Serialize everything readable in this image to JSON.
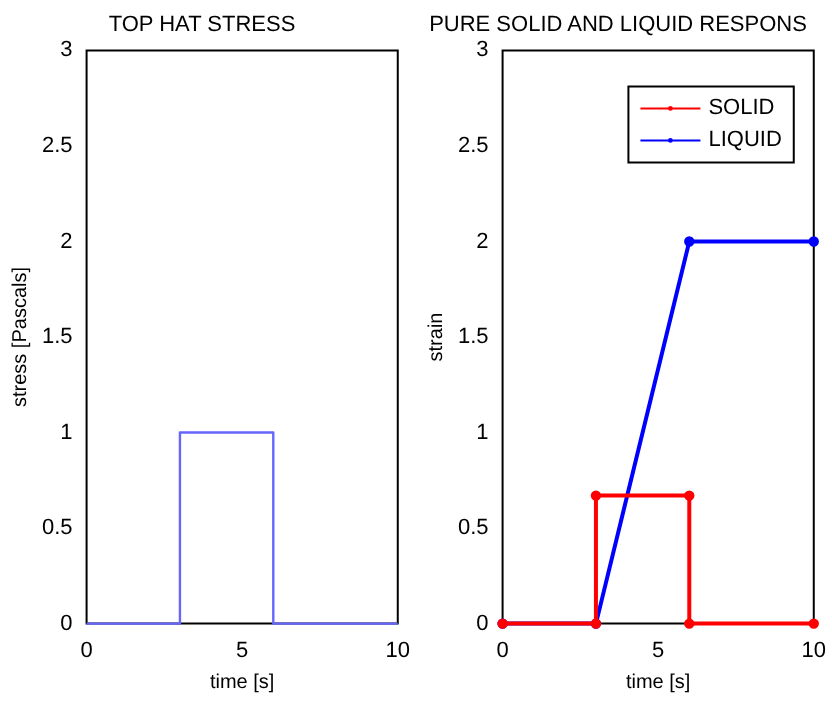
{
  "chart_data": [
    {
      "type": "line",
      "title": "TOP HAT STRESS",
      "xlabel": "time [s]",
      "ylabel": "stress [Pascals]",
      "xlim": [
        0,
        10
      ],
      "xticks": [
        0,
        5,
        10
      ],
      "ylim": [
        0,
        3
      ],
      "yticks": [
        0,
        0.5,
        1,
        1.5,
        2,
        2.5,
        3
      ],
      "grid": false,
      "legend": false,
      "series": [
        {
          "color": "#6666ff",
          "x": [
            0,
            3,
            3,
            6,
            6,
            10
          ],
          "values": [
            0,
            0,
            1,
            1,
            0,
            0
          ]
        }
      ]
    },
    {
      "type": "line",
      "title": "PURE SOLID AND LIQUID RESPONS",
      "xlabel": "time [s]",
      "ylabel": "strain",
      "xlim": [
        0,
        10
      ],
      "xticks": [
        0,
        5,
        10
      ],
      "ylim": [
        0,
        3
      ],
      "yticks": [
        0,
        0.5,
        1,
        1.5,
        2,
        2.5,
        3
      ],
      "grid": false,
      "legend": "top right",
      "marker": "circle",
      "series": [
        {
          "name": "SOLID",
          "color": "#ff0000",
          "x": [
            0,
            3,
            3,
            6,
            6,
            10
          ],
          "values": [
            0,
            0,
            0.67,
            0.67,
            0,
            0
          ]
        },
        {
          "name": "LIQUID",
          "color": "#0000ff",
          "x": [
            0,
            3,
            6,
            10
          ],
          "values": [
            0,
            0,
            2,
            2
          ]
        }
      ]
    }
  ]
}
